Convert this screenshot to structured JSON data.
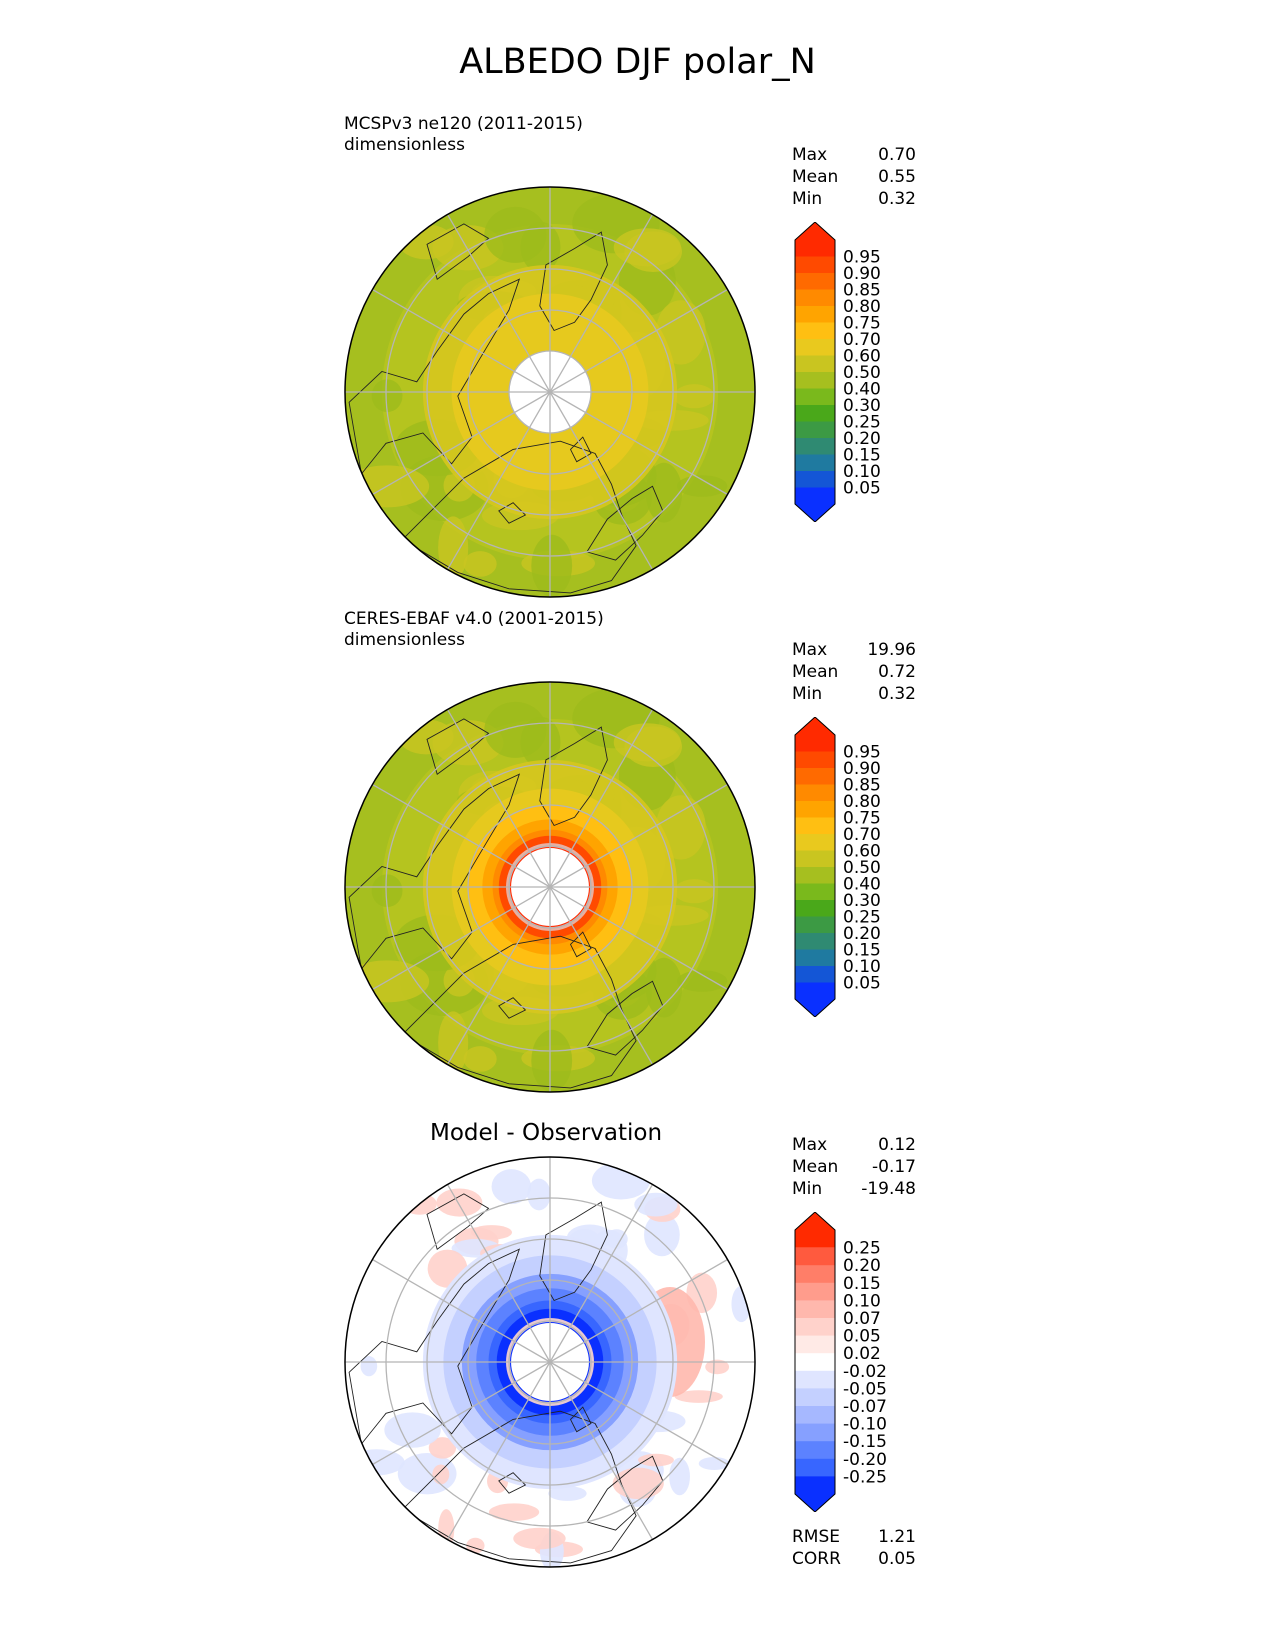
{
  "title": "ALBEDO DJF polar_N",
  "panels": [
    {
      "name": "test",
      "title": "",
      "header1": "MCSPv3 ne120 (2011-2015)",
      "header2": "dimensionless",
      "stats": [
        {
          "label": "Max",
          "value": "0.70"
        },
        {
          "label": "Mean",
          "value": "0.55"
        },
        {
          "label": "Min",
          "value": "0.32"
        }
      ],
      "colorbar": {
        "levels": [
          "0.95",
          "0.90",
          "0.85",
          "0.80",
          "0.75",
          "0.70",
          "0.60",
          "0.50",
          "0.40",
          "0.30",
          "0.25",
          "0.20",
          "0.15",
          "0.10",
          "0.05"
        ],
        "colors": [
          "#ff2a00",
          "#ff4a00",
          "#ff6a00",
          "#ff8a00",
          "#ffa400",
          "#ffbf12",
          "#e9c91e",
          "#c9c520",
          "#a6bf1f",
          "#7ab91c",
          "#4aa81a",
          "#3c9a44",
          "#2f8a72",
          "#1f7aa0",
          "#1456d6",
          "#0a30ff"
        ]
      },
      "field": {
        "pole_ring": false,
        "max": "0.70",
        "mean": "0.55",
        "min": "0.32"
      }
    },
    {
      "name": "reference",
      "title": "",
      "header1": "CERES-EBAF v4.0 (2001-2015)",
      "header2": "dimensionless",
      "stats": [
        {
          "label": "Max",
          "value": "19.96"
        },
        {
          "label": "Mean",
          "value": "0.72"
        },
        {
          "label": "Min",
          "value": "0.32"
        }
      ],
      "colorbar": {
        "levels": [
          "0.95",
          "0.90",
          "0.85",
          "0.80",
          "0.75",
          "0.70",
          "0.60",
          "0.50",
          "0.40",
          "0.30",
          "0.25",
          "0.20",
          "0.15",
          "0.10",
          "0.05"
        ],
        "colors": [
          "#ff2a00",
          "#ff4a00",
          "#ff6a00",
          "#ff8a00",
          "#ffa400",
          "#ffbf12",
          "#e9c91e",
          "#c9c520",
          "#a6bf1f",
          "#7ab91c",
          "#4aa81a",
          "#3c9a44",
          "#2f8a72",
          "#1f7aa0",
          "#1456d6",
          "#0a30ff"
        ]
      },
      "field": {
        "pole_ring": true
      }
    },
    {
      "name": "difference",
      "title": "Model - Observation",
      "header1": "",
      "header2": "",
      "stats": [
        {
          "label": "Max",
          "value": "0.12"
        },
        {
          "label": "Mean",
          "value": "-0.17"
        },
        {
          "label": "Min",
          "value": "-19.48"
        }
      ],
      "colorbar": {
        "levels": [
          "0.25",
          "0.20",
          "0.15",
          "0.10",
          "0.07",
          "0.05",
          "0.02",
          "-0.02",
          "-0.05",
          "-0.07",
          "-0.10",
          "-0.15",
          "-0.20",
          "-0.25"
        ],
        "colors": [
          "#ff2a00",
          "#ff5a3e",
          "#ff7e68",
          "#ff9c8c",
          "#ffb8ad",
          "#ffd2cb",
          "#ffeae6",
          "#ffffff",
          "#dfe5ff",
          "#c4d0ff",
          "#a6b8ff",
          "#86a0ff",
          "#5c82ff",
          "#3866ff",
          "#0a30ff"
        ]
      },
      "metrics": [
        {
          "label": "RMSE",
          "value": "1.21"
        },
        {
          "label": "CORR",
          "value": "0.05"
        }
      ]
    }
  ]
}
